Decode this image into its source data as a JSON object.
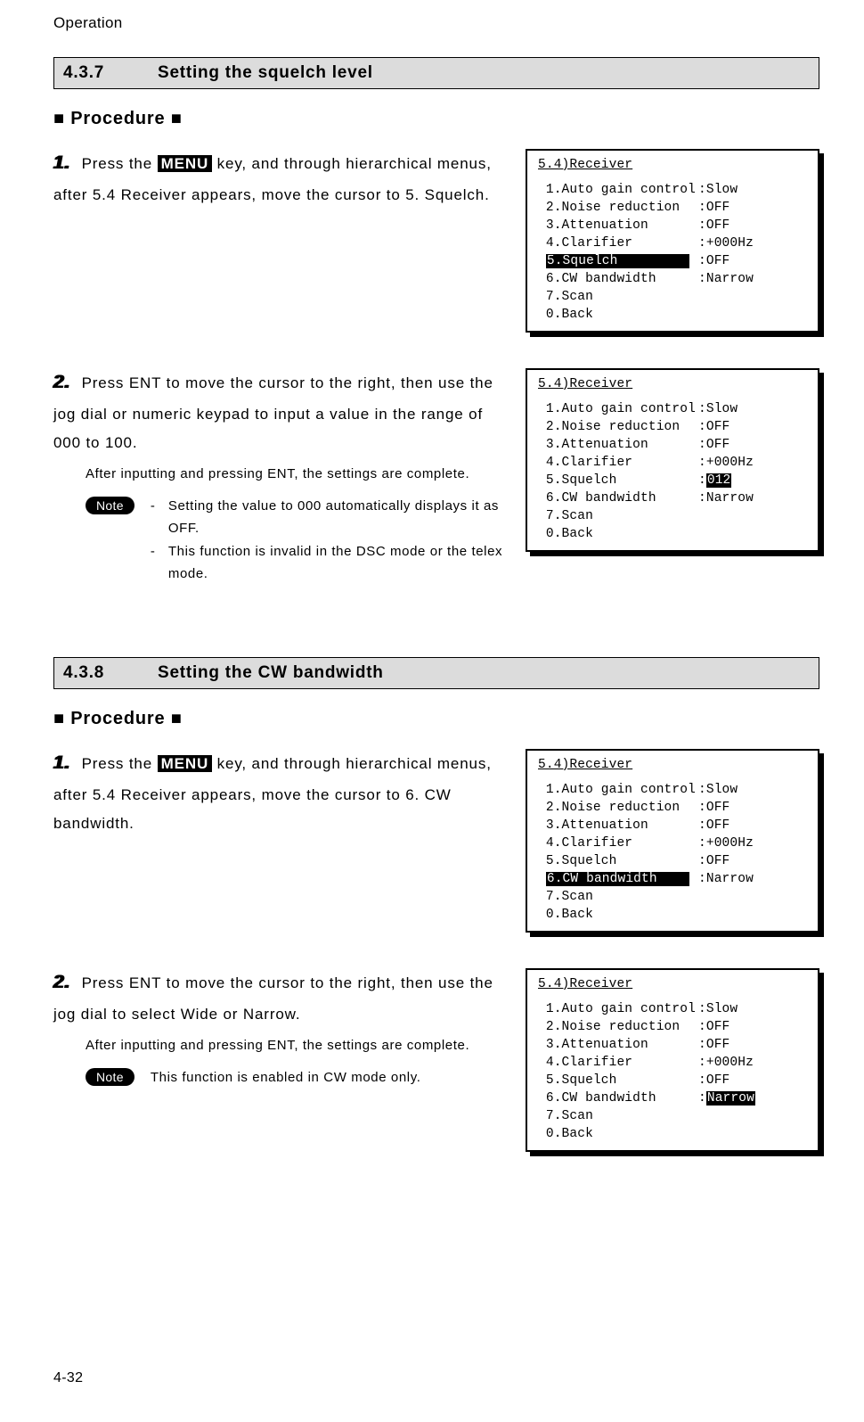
{
  "runningHeader": "Operation",
  "pageNumber": "4-32",
  "section1": {
    "number": "4.3.7",
    "title": "Setting the squelch level",
    "procedureLabel": "■ Procedure ■",
    "steps": {
      "s1": {
        "num": "1.",
        "pre": "Press the ",
        "key": "MENU",
        "post": " key, and through hierarchical menus, after 5.4 Receiver appears, move the cursor to 5. Squelch."
      },
      "s2": {
        "num": "2.",
        "text": "Press ENT to move the cursor to the right, then use the jog dial or numeric keypad to input a value in the range of 000 to 100.",
        "sub": "After inputting and pressing ENT, the settings are complete.",
        "noteLabel": "Note",
        "note1": "Setting the value to 000 automatically displays it as OFF.",
        "note2": "This function is invalid in the DSC mode or the telex mode."
      }
    },
    "screen1": {
      "title": "5.4)Receiver",
      "rows": {
        "r1": {
          "left": " 1.Auto gain control",
          "val": "Slow"
        },
        "r2": {
          "left": " 2.Noise reduction",
          "val": "OFF"
        },
        "r3": {
          "left": " 3.Attenuation",
          "val": "OFF"
        },
        "r4": {
          "left": " 4.Clarifier",
          "val": "+000Hz"
        },
        "r5": {
          "left": " 5.Squelch         ",
          "val": "OFF",
          "leftHighlighted": true
        },
        "r6": {
          "left": " 6.CW bandwidth",
          "val": "Narrow"
        },
        "r7": {
          "left": " 7.Scan",
          "val": ""
        },
        "r8": {
          "left": " 0.Back",
          "val": ""
        }
      }
    },
    "screen2": {
      "title": "5.4)Receiver",
      "rows": {
        "r1": {
          "left": " 1.Auto gain control",
          "val": "Slow"
        },
        "r2": {
          "left": " 2.Noise reduction",
          "val": "OFF"
        },
        "r3": {
          "left": " 3.Attenuation",
          "val": "OFF"
        },
        "r4": {
          "left": " 4.Clarifier",
          "val": "+000Hz"
        },
        "r5": {
          "left": " 5.Squelch",
          "val": "012",
          "valHighlighted": true
        },
        "r6": {
          "left": " 6.CW bandwidth",
          "val": "Narrow"
        },
        "r7": {
          "left": " 7.Scan",
          "val": ""
        },
        "r8": {
          "left": " 0.Back",
          "val": ""
        }
      }
    }
  },
  "section2": {
    "number": "4.3.8",
    "title": "Setting the CW bandwidth",
    "procedureLabel": "■ Procedure ■",
    "steps": {
      "s1": {
        "num": "1.",
        "pre": "Press the ",
        "key": "MENU",
        "post": " key, and through hierarchical menus, after 5.4 Receiver appears, move the cursor to 6. CW bandwidth."
      },
      "s2": {
        "num": "2.",
        "text": "Press ENT to move the cursor to the right, then use the jog dial to select Wide or Narrow.",
        "sub": "After inputting and pressing ENT, the settings are complete.",
        "noteLabel": "Note",
        "note1": "This function is enabled in CW mode only."
      }
    },
    "screen1": {
      "title": "5.4)Receiver",
      "rows": {
        "r1": {
          "left": " 1.Auto gain control",
          "val": "Slow"
        },
        "r2": {
          "left": " 2.Noise reduction",
          "val": "OFF"
        },
        "r3": {
          "left": " 3.Attenuation",
          "val": "OFF"
        },
        "r4": {
          "left": " 4.Clarifier",
          "val": "+000Hz"
        },
        "r5": {
          "left": " 5.Squelch",
          "val": "OFF"
        },
        "r6": {
          "left": " 6.CW bandwidth    ",
          "val": "Narrow",
          "leftHighlighted": true
        },
        "r7": {
          "left": " 7.Scan",
          "val": ""
        },
        "r8": {
          "left": " 0.Back",
          "val": ""
        }
      }
    },
    "screen2": {
      "title": "5.4)Receiver",
      "rows": {
        "r1": {
          "left": " 1.Auto gain control",
          "val": "Slow"
        },
        "r2": {
          "left": " 2.Noise reduction",
          "val": "OFF"
        },
        "r3": {
          "left": " 3.Attenuation",
          "val": "OFF"
        },
        "r4": {
          "left": " 4.Clarifier",
          "val": "+000Hz"
        },
        "r5": {
          "left": " 5.Squelch",
          "val": "OFF"
        },
        "r6": {
          "left": " 6.CW bandwidth",
          "val": "Narrow",
          "valHighlighted": true
        },
        "r7": {
          "left": " 7.Scan",
          "val": ""
        },
        "r8": {
          "left": " 0.Back",
          "val": ""
        }
      }
    }
  }
}
